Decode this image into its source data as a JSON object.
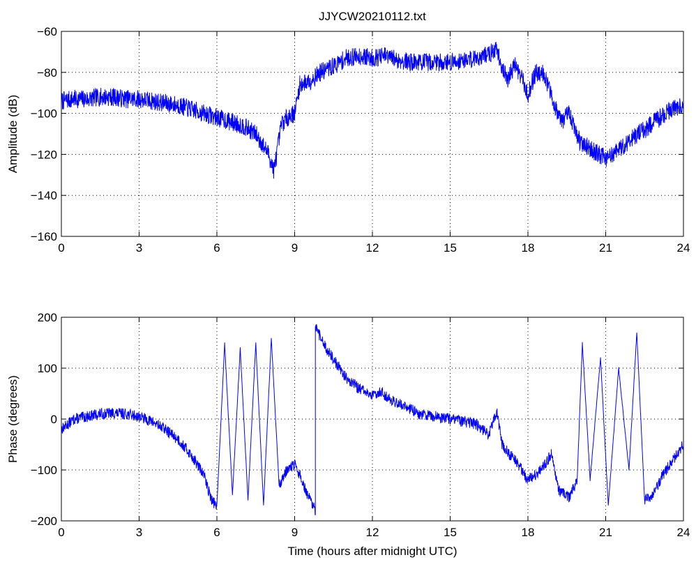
{
  "chart_data": [
    {
      "type": "line",
      "title": "JJYCW20210112.txt",
      "xlabel": "",
      "ylabel": "Amplitude (dB)",
      "xlim": [
        0,
        24
      ],
      "ylim": [
        -160,
        -60
      ],
      "xticks": [
        0,
        3,
        6,
        9,
        12,
        15,
        18,
        21,
        24
      ],
      "xtick_labels": [
        "0",
        "3",
        "6",
        "9",
        "12",
        "15",
        "18",
        "21",
        "24"
      ],
      "yticks": [
        -60,
        -80,
        -100,
        -120,
        -140,
        -160
      ],
      "ytick_labels": [
        "−60",
        "−80",
        "−100",
        "−120",
        "−140",
        "−160"
      ],
      "grid": true,
      "series": [
        {
          "color": "#0000ff",
          "x": [
            0,
            0.5,
            1,
            1.5,
            2,
            2.5,
            3,
            3.5,
            4,
            4.5,
            5,
            5.5,
            6,
            6.5,
            7,
            7.5,
            8,
            8.2,
            8.5,
            8.8,
            9,
            9.2,
            9.6,
            10,
            10.5,
            11,
            11.5,
            12,
            12.5,
            13,
            13.5,
            14,
            14.5,
            15,
            15.5,
            16,
            16.5,
            16.8,
            17,
            17.2,
            17.5,
            17.8,
            18,
            18.3,
            18.6,
            19,
            19.3,
            19.6,
            20,
            20.5,
            21,
            21.5,
            22,
            22.5,
            23,
            23.5,
            24
          ],
          "y": [
            -94,
            -93,
            -93,
            -92,
            -92,
            -93,
            -93,
            -94,
            -95,
            -96,
            -98,
            -100,
            -102,
            -104,
            -106,
            -110,
            -120,
            -128,
            -105,
            -101,
            -100,
            -86,
            -84,
            -80,
            -77,
            -73,
            -72,
            -73,
            -72,
            -74,
            -75,
            -75,
            -75,
            -75,
            -74,
            -73,
            -71,
            -69,
            -77,
            -84,
            -76,
            -84,
            -91,
            -80,
            -80,
            -95,
            -104,
            -100,
            -114,
            -118,
            -122,
            -118,
            -112,
            -108,
            -103,
            -98,
            -96
          ]
        }
      ]
    },
    {
      "type": "line",
      "title": "",
      "xlabel": "Time (hours after midnight UTC)",
      "ylabel": "Phase (degrees)",
      "xlim": [
        0,
        24
      ],
      "ylim": [
        -200,
        200
      ],
      "xticks": [
        0,
        3,
        6,
        9,
        12,
        15,
        18,
        21,
        24
      ],
      "xtick_labels": [
        "0",
        "3",
        "6",
        "9",
        "12",
        "15",
        "18",
        "21",
        "24"
      ],
      "yticks": [
        200,
        100,
        0,
        -100,
        -200
      ],
      "ytick_labels": [
        "200",
        "100",
        "0",
        "−100",
        "−200"
      ],
      "grid": true,
      "series": [
        {
          "color": "#0000ff",
          "x": [
            0,
            0.5,
            1,
            1.5,
            2,
            2.5,
            3,
            3.5,
            4,
            4.5,
            5,
            5.5,
            5.8,
            6,
            6.3,
            6.6,
            6.9,
            7.2,
            7.5,
            7.8,
            8.1,
            8.4,
            8.7,
            9,
            9.2,
            9.5,
            9.8,
            9.8,
            10.2,
            10.6,
            11,
            11.5,
            12,
            12.3,
            12.8,
            13.3,
            13.8,
            14.5,
            15,
            15.5,
            16,
            16.5,
            16.8,
            17,
            17.3,
            17.6,
            18,
            18.5,
            18.9,
            19.2,
            19.6,
            19.9,
            20.1,
            20.4,
            20.8,
            21.1,
            21.5,
            21.9,
            22.2,
            22.5,
            22.8,
            23.2,
            23.6,
            24
          ],
          "y": [
            -20,
            0,
            5,
            10,
            12,
            10,
            5,
            -5,
            -20,
            -40,
            -70,
            -110,
            -160,
            -170,
            150,
            -150,
            140,
            -160,
            150,
            -170,
            160,
            -130,
            -100,
            -90,
            -110,
            -150,
            -180,
            180,
            140,
            110,
            80,
            60,
            45,
            55,
            35,
            25,
            10,
            5,
            0,
            -5,
            -10,
            -30,
            15,
            -50,
            -70,
            -85,
            -120,
            -100,
            -70,
            -140,
            -155,
            -120,
            150,
            -120,
            120,
            -170,
            100,
            -100,
            170,
            -160,
            -150,
            -110,
            -80,
            -50
          ]
        }
      ]
    }
  ]
}
